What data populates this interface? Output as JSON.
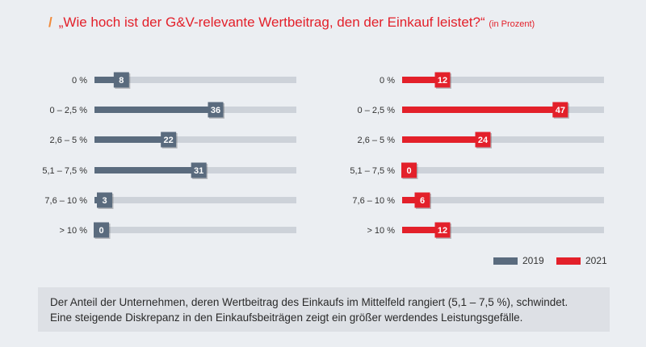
{
  "title": {
    "prefix": "/",
    "text": "„Wie hoch ist der G&V-relevante Wertbeitrag, den der Einkauf leistet?“",
    "unit": "(in Prozent)"
  },
  "legend": [
    {
      "label": "2019",
      "color": "#5a6b7e"
    },
    {
      "label": "2021",
      "color": "#e3202a"
    }
  ],
  "colors": {
    "track": "#cdd2d9",
    "bg": "#ebeef2"
  },
  "chart_data": [
    {
      "type": "bar",
      "orientation": "horizontal",
      "series_name": "2019",
      "color": "#5a6b7e",
      "categories": [
        "0 %",
        "0 – 2,5 %",
        "2,6 – 5 %",
        "5,1 – 7,5 %",
        "7,6 – 10 %",
        "> 10 %"
      ],
      "values": [
        8,
        36,
        22,
        31,
        3,
        0
      ],
      "xlim": [
        0,
        60
      ]
    },
    {
      "type": "bar",
      "orientation": "horizontal",
      "series_name": "2021",
      "color": "#e3202a",
      "categories": [
        "0 %",
        "0 – 2,5 %",
        "2,6 – 5 %",
        "5,1 – 7,5 %",
        "7,6 – 10 %",
        "> 10 %"
      ],
      "values": [
        12,
        47,
        24,
        0,
        6,
        12
      ],
      "xlim": [
        0,
        60
      ]
    }
  ],
  "note": [
    "Der Anteil der Unternehmen, deren Wertbeitrag des Einkaufs im Mittelfeld rangiert (5,1 – 7,5 %), schwindet.",
    "Eine steigende Diskrepanz in den Einkaufsbeiträgen zeigt ein größer werdendes Leistungsgefälle."
  ]
}
